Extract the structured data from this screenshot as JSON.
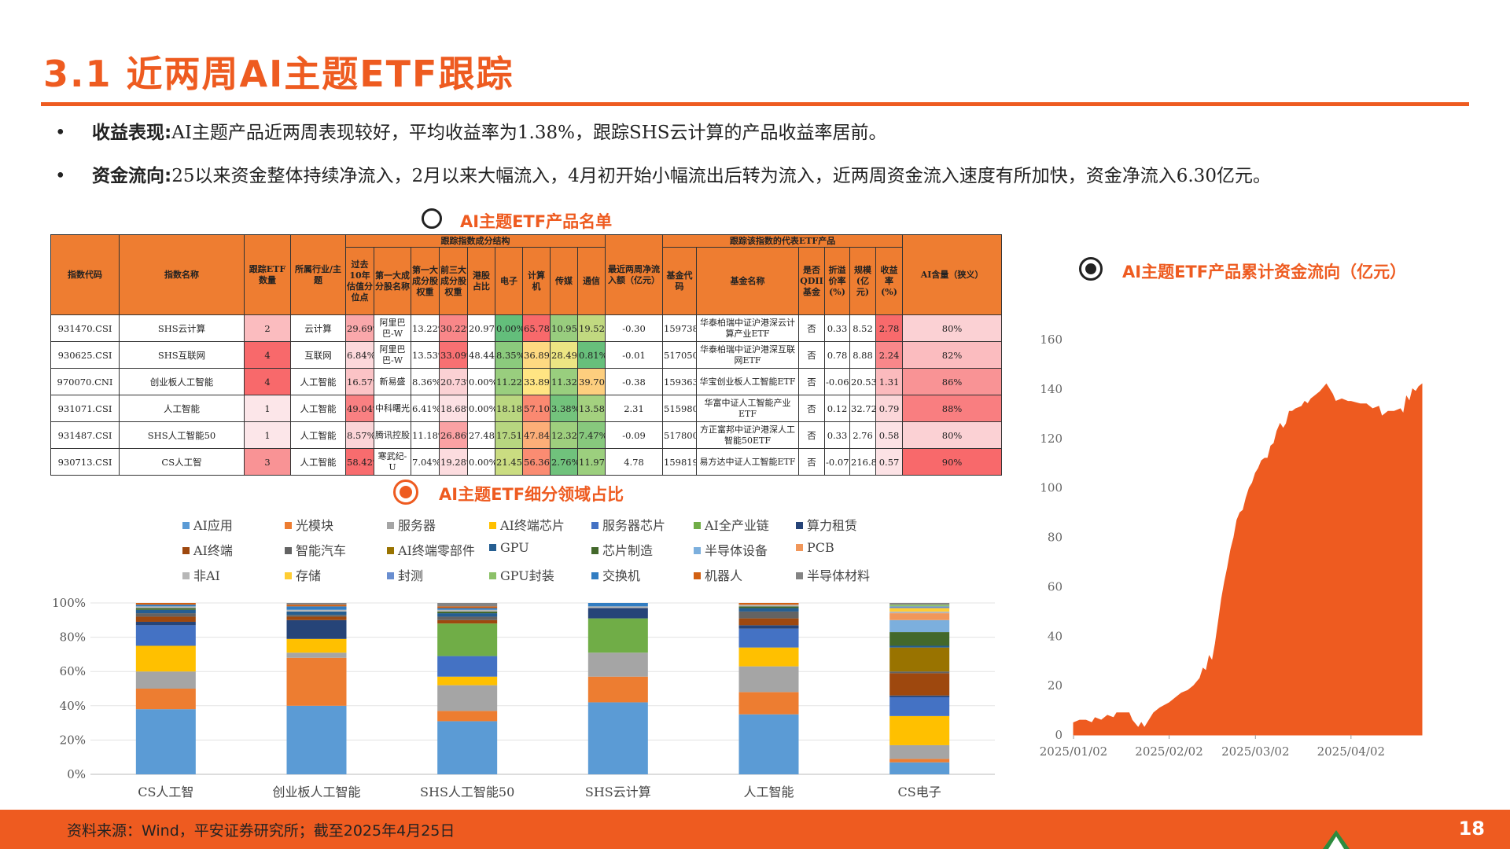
{
  "title": "3.1  近两周AI主题ETF跟踪",
  "bullets": [
    {
      "label": "收益表现:",
      "text": "AI主题产品近两周表现较好，平均收益率为1.38%，跟踪SHS云计算的产品收益率居前。"
    },
    {
      "label": "资金流向:",
      "text": "25以来资金整体持续净流入，2月以来大幅流入，4月初开始小幅流出后转为流入，近两周资金流入速度有所加快，资金净流入6.30亿元。"
    }
  ],
  "bullet_symbol": "•",
  "table_title": "AI主题ETF产品名单",
  "table": {
    "group_headers": {
      "structure": "跟踪指数成分结构",
      "etf": "跟踪该指数的代表ETF产品"
    },
    "headers": {
      "code": "指数代码",
      "name": "指数名称",
      "count": "跟踪ETF数量",
      "industry": "所属行业/主题",
      "top10": "过去10年估值分位点",
      "top1": "第一大成分股名称",
      "top1w": "第一大成分股权重",
      "top3w": "前三大成分股权重",
      "hk": "港股占比",
      "elec": "电子",
      "comp": "计算机",
      "media": "传媒",
      "tele": "通信",
      "flow": "最近两周净流入额（亿元）",
      "fcode": "基金代码",
      "fname": "基金名称",
      "qdii": "是否QDII基金",
      "disc": "折溢价率(%)",
      "scale": "规模(亿元)",
      "ret": "收益率(%)",
      "ai": "AI含量（狭义）"
    },
    "rows": [
      {
        "code": "931470.CSI",
        "name": "SHS云计算",
        "count": "2",
        "industry": "云计算",
        "top10": "29.69%",
        "top1": "阿里巴巴-W",
        "top1w": "13.22%",
        "top3w": "30.22%",
        "hk": "20.97%",
        "elec": "0.00%",
        "comp": "65.78%",
        "media": "10.95%",
        "tele": "19.52%",
        "flow": "-0.30",
        "fcode": "159738.SZ",
        "fname": "华泰柏瑞中证沪港深云计算产业ETF",
        "qdii": "否",
        "disc": "0.33",
        "scale": "8.52",
        "ret": "2.78",
        "ai": "80%"
      },
      {
        "code": "930625.CSI",
        "name": "SHS互联网",
        "count": "4",
        "industry": "互联网",
        "top10": "6.84%",
        "top1": "阿里巴巴-W",
        "top1w": "13.53%",
        "top3w": "33.09%",
        "hk": "48.44%",
        "elec": "8.35%",
        "comp": "36.89%",
        "media": "28.49%",
        "tele": "0.81%",
        "flow": "-0.01",
        "fcode": "517050.SH",
        "fname": "华泰柏瑞中证沪港深互联网ETF",
        "qdii": "否",
        "disc": "0.78",
        "scale": "8.88",
        "ret": "2.24",
        "ai": "82%"
      },
      {
        "code": "970070.CNI",
        "name": "创业板人工智能",
        "count": "4",
        "industry": "人工智能",
        "top10": "16.57%",
        "top1": "新易盛",
        "top1w": "8.36%",
        "top3w": "20.73%",
        "hk": "0.00%",
        "elec": "11.22%",
        "comp": "33.89%",
        "media": "11.32%",
        "tele": "39.70%",
        "flow": "-0.38",
        "fcode": "159363.SZ",
        "fname": "华宝创业板人工智能ETF",
        "qdii": "否",
        "disc": "-0.06",
        "scale": "20.53",
        "ret": "1.31",
        "ai": "86%"
      },
      {
        "code": "931071.CSI",
        "name": "人工智能",
        "count": "1",
        "industry": "人工智能",
        "top10": "49.04%",
        "top1": "中科曙光",
        "top1w": "6.41%",
        "top3w": "18.68%",
        "hk": "0.00%",
        "elec": "18.18%",
        "comp": "57.10%",
        "media": "3.38%",
        "tele": "13.58%",
        "flow": "2.31",
        "fcode": "515980.SH",
        "fname": "华富中证人工智能产业ETF",
        "qdii": "否",
        "disc": "0.12",
        "scale": "32.72",
        "ret": "0.79",
        "ai": "88%"
      },
      {
        "code": "931487.CSI",
        "name": "SHS人工智能50",
        "count": "1",
        "industry": "人工智能",
        "top10": "8.57%",
        "top1": "腾讯控股",
        "top1w": "11.18%",
        "top3w": "26.86%",
        "hk": "27.48%",
        "elec": "17.51%",
        "comp": "47.84%",
        "media": "12.32%",
        "tele": "7.47%",
        "flow": "-0.09",
        "fcode": "517800.SH",
        "fname": "方正富邦中证沪港深人工智能50ETF",
        "qdii": "否",
        "disc": "0.33",
        "scale": "2.76",
        "ret": "0.58",
        "ai": "80%"
      },
      {
        "code": "930713.CSI",
        "name": "CS人工智",
        "count": "3",
        "industry": "人工智能",
        "top10": "58.42%",
        "top1": "寒武纪-U",
        "top1w": "7.04%",
        "top3w": "19.28%",
        "hk": "0.00%",
        "elec": "21.45%",
        "comp": "56.36%",
        "media": "2.76%",
        "tele": "11.97%",
        "flow": "4.78",
        "fcode": "159819.SZ",
        "fname": "易方达中证人工智能ETF",
        "qdii": "否",
        "disc": "-0.07",
        "scale": "216.89",
        "ret": "0.57",
        "ai": "90%"
      }
    ]
  },
  "colors": {
    "accent": "#ee5b20",
    "header": "#ee7d31"
  },
  "chart_data": [
    {
      "type": "bar",
      "stacked": true,
      "title": "AI主题ETF细分领域占比",
      "categories": [
        "CS人工智",
        "创业板人工智能",
        "SHS人工智能50",
        "SHS云计算",
        "人工智能",
        "CS电子"
      ],
      "yticks": [
        "0%",
        "20%",
        "40%",
        "60%",
        "80%",
        "100%"
      ],
      "ylim": [
        0,
        100
      ],
      "legend_position": "top",
      "series": [
        {
          "name": "AI应用",
          "color": "#5b9bd5",
          "values": [
            38,
            40,
            31,
            42,
            35,
            7
          ]
        },
        {
          "name": "光模块",
          "color": "#ed7d31",
          "values": [
            12,
            28,
            6,
            15,
            13,
            2
          ]
        },
        {
          "name": "服务器",
          "color": "#a5a5a5",
          "values": [
            10,
            3,
            15,
            14,
            15,
            8
          ]
        },
        {
          "name": "AI终端芯片",
          "color": "#ffc000",
          "values": [
            15,
            8,
            5,
            0,
            11,
            17
          ]
        },
        {
          "name": "服务器芯片",
          "color": "#4472c4",
          "values": [
            12,
            0,
            12,
            0,
            11,
            11
          ]
        },
        {
          "name": "AI全产业链",
          "color": "#70ad47",
          "values": [
            0,
            0,
            19,
            20,
            0,
            0
          ]
        },
        {
          "name": "算力租赁",
          "color": "#264478",
          "values": [
            2,
            11,
            0,
            6,
            2,
            1
          ]
        },
        {
          "name": "AI终端",
          "color": "#9e480e",
          "values": [
            3,
            2,
            2,
            0,
            4,
            13
          ]
        },
        {
          "name": "智能汽车",
          "color": "#636363",
          "values": [
            2,
            1,
            2,
            0,
            4,
            1
          ]
        },
        {
          "name": "AI终端零部件",
          "color": "#997300",
          "values": [
            0,
            0,
            0,
            0,
            0,
            14
          ]
        },
        {
          "name": "GPU",
          "color": "#255e91",
          "values": [
            2,
            2,
            2,
            0,
            2,
            1
          ]
        },
        {
          "name": "芯片制造",
          "color": "#43682b",
          "values": [
            1,
            0,
            1,
            0,
            1,
            8
          ]
        },
        {
          "name": "半导体设备",
          "color": "#7cafdd",
          "values": [
            0,
            0,
            0,
            0,
            0,
            7
          ]
        },
        {
          "name": "PCB",
          "color": "#f1975a",
          "values": [
            0,
            0,
            0,
            0,
            0,
            4
          ]
        },
        {
          "name": "非AI",
          "color": "#b7b7b7",
          "values": [
            1,
            1,
            1,
            1,
            1,
            1
          ]
        },
        {
          "name": "存储",
          "color": "#ffcd33",
          "values": [
            0,
            0,
            0,
            0,
            0,
            2
          ]
        },
        {
          "name": "封测",
          "color": "#698ed0",
          "values": [
            0,
            0,
            0,
            0,
            0,
            1
          ]
        },
        {
          "name": "GPU封装",
          "color": "#8cc168",
          "values": [
            0,
            0,
            0,
            0,
            0,
            1
          ]
        },
        {
          "name": "交换机",
          "color": "#327dc2",
          "values": [
            1,
            2,
            1,
            2,
            0,
            0
          ]
        },
        {
          "name": "机器人",
          "color": "#d26012",
          "values": [
            1,
            1,
            1,
            0,
            1,
            0
          ]
        },
        {
          "name": "半导体材料",
          "color": "#848484",
          "values": [
            0,
            1,
            2,
            0,
            0,
            1
          ]
        }
      ]
    },
    {
      "type": "area",
      "title": "AI主题ETF产品累计资金流向（亿元）",
      "xticks": [
        "2025/01/02",
        "2025/02/02",
        "2025/03/02",
        "2025/04/02"
      ],
      "yticks": [
        "0",
        "20",
        "40",
        "60",
        "80",
        "100",
        "120",
        "140",
        "160"
      ],
      "ylim": [
        0,
        160
      ],
      "xlim": [
        "2025/01/02",
        "2025/04/25"
      ],
      "color": "#ee5b20",
      "points": [
        [
          "2025/01/02",
          5
        ],
        [
          "2025/01/04",
          6
        ],
        [
          "2025/01/06",
          6
        ],
        [
          "2025/01/08",
          5
        ],
        [
          "2025/01/09",
          7
        ],
        [
          "2025/01/11",
          6
        ],
        [
          "2025/01/13",
          8
        ],
        [
          "2025/01/15",
          7
        ],
        [
          "2025/01/16",
          9
        ],
        [
          "2025/01/18",
          9
        ],
        [
          "2025/01/20",
          9
        ],
        [
          "2025/01/21",
          6
        ],
        [
          "2025/01/23",
          3
        ],
        [
          "2025/01/24",
          5
        ],
        [
          "2025/01/25",
          3
        ],
        [
          "2025/01/27",
          7
        ],
        [
          "2025/01/28",
          9
        ],
        [
          "2025/01/30",
          11
        ],
        [
          "2025/02/02",
          13
        ],
        [
          "2025/02/04",
          15
        ],
        [
          "2025/02/06",
          17
        ],
        [
          "2025/02/08",
          18
        ],
        [
          "2025/02/10",
          20
        ],
        [
          "2025/02/12",
          23
        ],
        [
          "2025/02/13",
          27
        ],
        [
          "2025/02/14",
          26
        ],
        [
          "2025/02/15",
          32
        ],
        [
          "2025/02/16",
          30
        ],
        [
          "2025/02/17",
          37
        ],
        [
          "2025/02/18",
          46
        ],
        [
          "2025/02/19",
          55
        ],
        [
          "2025/02/20",
          62
        ],
        [
          "2025/02/21",
          68
        ],
        [
          "2025/02/22",
          75
        ],
        [
          "2025/02/23",
          80
        ],
        [
          "2025/02/24",
          87
        ],
        [
          "2025/02/25",
          90
        ],
        [
          "2025/02/26",
          91
        ],
        [
          "2025/02/27",
          96
        ],
        [
          "2025/02/28",
          100
        ],
        [
          "2025/03/01",
          102
        ],
        [
          "2025/03/02",
          106
        ],
        [
          "2025/03/03",
          108
        ],
        [
          "2025/03/04",
          111
        ],
        [
          "2025/03/05",
          112
        ],
        [
          "2025/03/06",
          112
        ],
        [
          "2025/03/07",
          117
        ],
        [
          "2025/03/08",
          118
        ],
        [
          "2025/03/09",
          123
        ],
        [
          "2025/03/10",
          126
        ],
        [
          "2025/03/11",
          124
        ],
        [
          "2025/03/12",
          126
        ],
        [
          "2025/03/13",
          131
        ],
        [
          "2025/03/14",
          131
        ],
        [
          "2025/03/15",
          132
        ],
        [
          "2025/03/17",
          133
        ],
        [
          "2025/03/18",
          135
        ],
        [
          "2025/03/19",
          134
        ],
        [
          "2025/03/20",
          136
        ],
        [
          "2025/03/21",
          137
        ],
        [
          "2025/03/23",
          139
        ],
        [
          "2025/03/25",
          142
        ],
        [
          "2025/03/26",
          140
        ],
        [
          "2025/03/27",
          138
        ],
        [
          "2025/03/28",
          135
        ],
        [
          "2025/03/30",
          136
        ],
        [
          "2025/04/01",
          135
        ],
        [
          "2025/04/02",
          135
        ],
        [
          "2025/04/05",
          134
        ],
        [
          "2025/04/07",
          134
        ],
        [
          "2025/04/09",
          132
        ],
        [
          "2025/04/11",
          133
        ],
        [
          "2025/04/12",
          129
        ],
        [
          "2025/04/14",
          131
        ],
        [
          "2025/04/16",
          131
        ],
        [
          "2025/04/18",
          132
        ],
        [
          "2025/04/19",
          130
        ],
        [
          "2025/04/20",
          137
        ],
        [
          "2025/04/21",
          135
        ],
        [
          "2025/04/22",
          140
        ],
        [
          "2025/04/23",
          139
        ],
        [
          "2025/04/24",
          141
        ],
        [
          "2025/04/25",
          142
        ]
      ]
    }
  ],
  "footer": {
    "source": "资料来源：Wind，平安证券研究所；截至2025年4月25日",
    "page": "18"
  }
}
